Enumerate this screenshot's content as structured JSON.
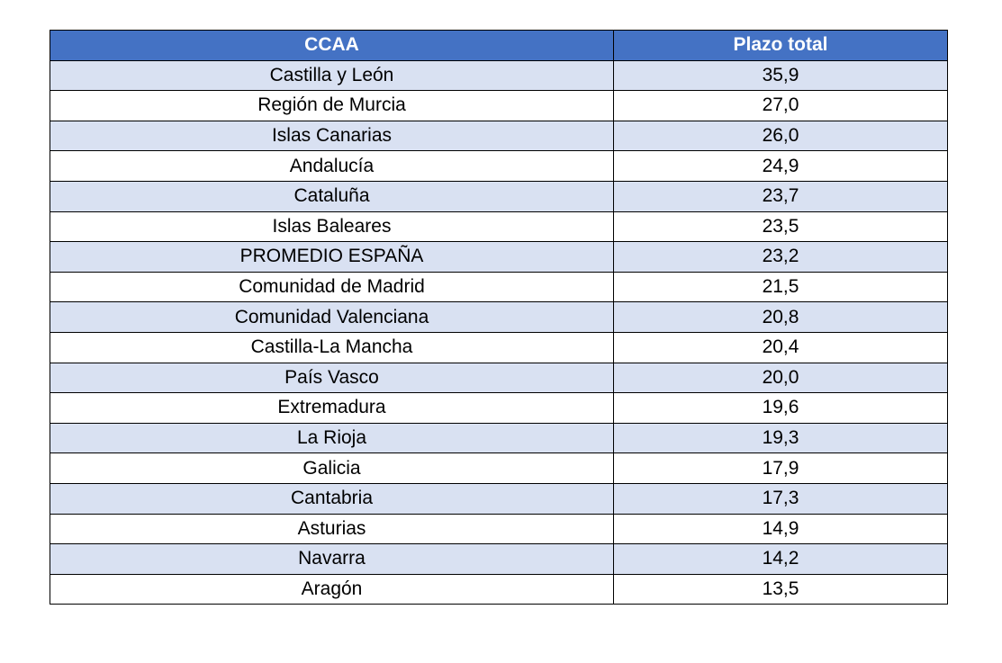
{
  "table": {
    "header_color": "#4472C4",
    "band_color": "#D9E1F2",
    "columns": [
      "CCAA",
      "Plazo total"
    ],
    "rows": [
      {
        "ccaa": "Castilla y León",
        "plazo_total": "35,9"
      },
      {
        "ccaa": "Región de Murcia",
        "plazo_total": "27,0"
      },
      {
        "ccaa": "Islas Canarias",
        "plazo_total": "26,0"
      },
      {
        "ccaa": "Andalucía",
        "plazo_total": "24,9"
      },
      {
        "ccaa": "Cataluña",
        "plazo_total": "23,7"
      },
      {
        "ccaa": "Islas Baleares",
        "plazo_total": "23,5"
      },
      {
        "ccaa": "PROMEDIO ESPAÑA",
        "plazo_total": "23,2"
      },
      {
        "ccaa": "Comunidad de Madrid",
        "plazo_total": "21,5"
      },
      {
        "ccaa": "Comunidad Valenciana",
        "plazo_total": "20,8"
      },
      {
        "ccaa": "Castilla-La Mancha",
        "plazo_total": "20,4"
      },
      {
        "ccaa": "País Vasco",
        "plazo_total": "20,0"
      },
      {
        "ccaa": "Extremadura",
        "plazo_total": "19,6"
      },
      {
        "ccaa": "La Rioja",
        "plazo_total": "19,3"
      },
      {
        "ccaa": "Galicia",
        "plazo_total": "17,9"
      },
      {
        "ccaa": "Cantabria",
        "plazo_total": "17,3"
      },
      {
        "ccaa": "Asturias",
        "plazo_total": "14,9"
      },
      {
        "ccaa": "Navarra",
        "plazo_total": "14,2"
      },
      {
        "ccaa": "Aragón",
        "plazo_total": "13,5"
      }
    ]
  }
}
